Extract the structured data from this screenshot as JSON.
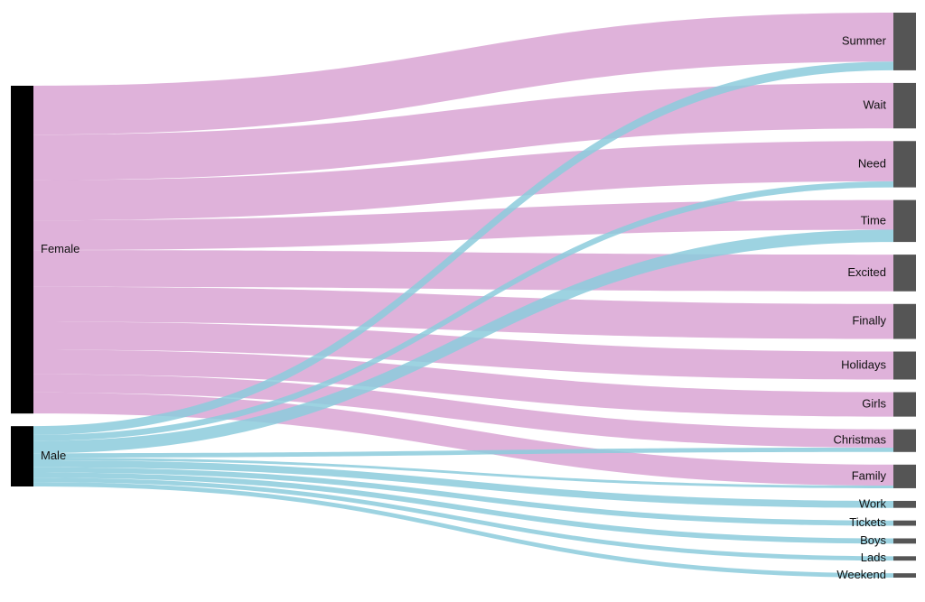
{
  "chart_data": {
    "type": "sankey",
    "nodes": [
      {
        "name": "Female",
        "color": "#000000",
        "flow_color": "#d9a5d4"
      },
      {
        "name": "Male",
        "color": "#000000",
        "flow_color": "#8ccbdc"
      },
      {
        "name": "Summer",
        "color": "#555555"
      },
      {
        "name": "Wait",
        "color": "#555555"
      },
      {
        "name": "Need",
        "color": "#555555"
      },
      {
        "name": "Time",
        "color": "#555555"
      },
      {
        "name": "Excited",
        "color": "#555555"
      },
      {
        "name": "Finally",
        "color": "#555555"
      },
      {
        "name": "Holidays",
        "color": "#555555"
      },
      {
        "name": "Girls",
        "color": "#555555"
      },
      {
        "name": "Christmas",
        "color": "#555555"
      },
      {
        "name": "Family",
        "color": "#555555"
      },
      {
        "name": "Work",
        "color": "#555555"
      },
      {
        "name": "Tickets",
        "color": "#555555"
      },
      {
        "name": "Boys",
        "color": "#555555"
      },
      {
        "name": "Lads",
        "color": "#555555"
      },
      {
        "name": "Weekend",
        "color": "#555555"
      }
    ],
    "links": [
      {
        "source": 0,
        "target": 2,
        "value": 56
      },
      {
        "source": 0,
        "target": 3,
        "value": 52
      },
      {
        "source": 0,
        "target": 4,
        "value": 46
      },
      {
        "source": 0,
        "target": 5,
        "value": 34
      },
      {
        "source": 0,
        "target": 6,
        "value": 42
      },
      {
        "source": 0,
        "target": 7,
        "value": 40
      },
      {
        "source": 0,
        "target": 8,
        "value": 32
      },
      {
        "source": 0,
        "target": 9,
        "value": 28
      },
      {
        "source": 0,
        "target": 10,
        "value": 21
      },
      {
        "source": 0,
        "target": 11,
        "value": 24
      },
      {
        "source": 1,
        "target": 2,
        "value": 10
      },
      {
        "source": 1,
        "target": 4,
        "value": 7
      },
      {
        "source": 1,
        "target": 5,
        "value": 14
      },
      {
        "source": 1,
        "target": 10,
        "value": 5
      },
      {
        "source": 1,
        "target": 11,
        "value": 3
      },
      {
        "source": 1,
        "target": 12,
        "value": 8
      },
      {
        "source": 1,
        "target": 13,
        "value": 6
      },
      {
        "source": 1,
        "target": 14,
        "value": 6
      },
      {
        "source": 1,
        "target": 15,
        "value": 5
      },
      {
        "source": 1,
        "target": 16,
        "value": 5
      }
    ]
  }
}
